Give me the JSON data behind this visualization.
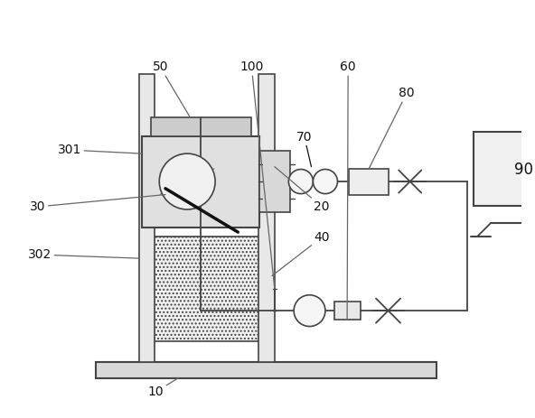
{
  "bg_color": "#ffffff",
  "lc": "#666666",
  "lc2": "#444444",
  "dark": "#111111",
  "figsize": [
    5.92,
    4.63
  ],
  "dpi": 100
}
